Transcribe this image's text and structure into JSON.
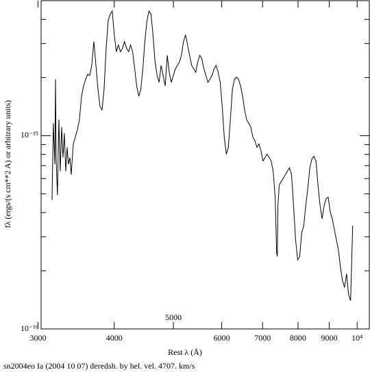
{
  "chart_data": {
    "type": "line",
    "title": "sn2004eo Ia (2004 10 07) deredsh. by hel. vel.  4707. km/s",
    "x_label": "Rest λ (Å)",
    "y_label": "fλ (ergs/(s cm**2 A) or arbitrary units)",
    "xscale": "log",
    "yscale": "log",
    "color": "#000000",
    "xlim": [
      3035,
      10470
    ],
    "ylim": [
      1e-16,
      5e-15
    ],
    "xticks": [
      3000,
      4000,
      5000,
      6000,
      7000,
      8000,
      9000,
      {
        "value": 10000,
        "label": "10⁴"
      }
    ],
    "yticks": [
      {
        "value": 1e-16,
        "label": "10⁻¹⁶"
      },
      {
        "value": 1e-15,
        "label": "10⁻¹⁵"
      }
    ],
    "yminorticks": [
      2e-16,
      3e-16,
      4e-16,
      5e-16,
      6e-16,
      7e-16,
      8e-16,
      9e-16,
      2e-15,
      3e-15,
      4e-15,
      5e-15
    ],
    "x": [
      3162,
      3179,
      3196,
      3204,
      3212,
      3228,
      3245,
      3262,
      3279,
      3296,
      3313,
      3331,
      3348,
      3365,
      3383,
      3400,
      3427,
      3453,
      3480,
      3507,
      3535,
      3562,
      3590,
      3617,
      3646,
      3674,
      3703,
      3732,
      3761,
      3790,
      3819,
      3849,
      3879,
      3908,
      3939,
      3969,
      4000,
      4031,
      4062,
      4094,
      4125,
      4157,
      4189,
      4222,
      4254,
      4287,
      4320,
      4353,
      4387,
      4421,
      4455,
      4489,
      4524,
      4559,
      4594,
      4629,
      4665,
      4701,
      4737,
      4773,
      4810,
      4847,
      4885,
      4922,
      4960,
      4998,
      5037,
      5076,
      5115,
      5154,
      5194,
      5234,
      5274,
      5315,
      5356,
      5397,
      5439,
      5481,
      5523,
      5565,
      5608,
      5652,
      5695,
      5739,
      5784,
      5829,
      5874,
      5919,
      5965,
      6011,
      6057,
      6104,
      6151,
      6198,
      6246,
      6295,
      6343,
      6392,
      6441,
      6491,
      6541,
      6592,
      6643,
      6694,
      6746,
      6798,
      6850,
      6903,
      6957,
      7010,
      7064,
      7119,
      7174,
      7229,
      7285,
      7341,
      7379,
      7398,
      7417,
      7455,
      7512,
      7571,
      7629,
      7688,
      7747,
      7807,
      7867,
      7928,
      7989,
      8051,
      8113,
      8176,
      8239,
      8302,
      8366,
      8431,
      8496,
      8562,
      8628,
      8694,
      8761,
      8829,
      8897,
      8966,
      9035,
      9105,
      9175,
      9246,
      9317,
      9389,
      9461,
      9535,
      9608,
      9682,
      9757,
      9832
    ],
    "values": [
      4.66e-16,
      1.16e-15,
      7.11e-16,
      1.96e-15,
      7.71e-16,
      4.93e-16,
      1.21e-15,
      6.55e-16,
      1.11e-15,
      7.71e-16,
      1.03e-15,
      6.55e-16,
      8.71e-16,
      7.11e-16,
      7.71e-16,
      6.29e-16,
      9.07e-16,
      9.84e-16,
      1.07e-15,
      1.21e-15,
      1.6e-15,
      1.81e-15,
      1.96e-15,
      2.08e-15,
      2.05e-15,
      2.31e-15,
      3.07e-15,
      2.31e-15,
      1.74e-15,
      1.42e-15,
      1.36e-15,
      1.74e-15,
      2.83e-15,
      3.92e-15,
      4.26e-15,
      4.43e-15,
      3.33e-15,
      2.72e-15,
      2.95e-15,
      2.72e-15,
      2.83e-15,
      3.07e-15,
      2.83e-15,
      2.72e-15,
      2.95e-15,
      2.72e-15,
      2.22e-15,
      1.81e-15,
      1.6e-15,
      1.74e-15,
      2.22e-15,
      3.07e-15,
      3.92e-15,
      4.43e-15,
      4.26e-15,
      3.33e-15,
      2.41e-15,
      2.05e-15,
      1.89e-15,
      2.31e-15,
      2.05e-15,
      1.81e-15,
      2.61e-15,
      2.13e-15,
      1.89e-15,
      2.05e-15,
      2.22e-15,
      2.31e-15,
      2.41e-15,
      2.61e-15,
      3.07e-15,
      3.33e-15,
      2.95e-15,
      2.61e-15,
      2.31e-15,
      2.22e-15,
      2.13e-15,
      2.41e-15,
      2.61e-15,
      2.51e-15,
      2.22e-15,
      2.05e-15,
      1.89e-15,
      1.96e-15,
      2.05e-15,
      2.22e-15,
      2.31e-15,
      2.13e-15,
      1.89e-15,
      1.42e-15,
      9.84e-16,
      8.03e-16,
      8.71e-16,
      1.21e-15,
      1.74e-15,
      1.96e-15,
      2.01e-15,
      1.96e-15,
      1.81e-15,
      1.6e-15,
      1.36e-15,
      1.21e-15,
      1.16e-15,
      1.11e-15,
      9.84e-16,
      9.44e-16,
      8.71e-16,
      9.07e-16,
      8.36e-16,
      7.4e-16,
      7.71e-16,
      8.03e-16,
      7.71e-16,
      7.4e-16,
      6.55e-16,
      4.73e-16,
      2.47e-16,
      2.37e-16,
      4.36e-16,
      5.57e-16,
      5.8e-16,
      6.04e-16,
      6.29e-16,
      6.55e-16,
      6.82e-16,
      6.29e-16,
      4.36e-16,
      2.9e-16,
      2.28e-16,
      2.37e-16,
      3.15e-16,
      3.42e-16,
      4.36e-16,
      5.35e-16,
      6.82e-16,
      7.59e-16,
      7.83e-16,
      7.4e-16,
      5.57e-16,
      4.36e-16,
      3.71e-16,
      4.36e-16,
      4.73e-16,
      4.81e-16,
      4.02e-16,
      3.71e-16,
      3.28e-16,
      2.9e-16,
      2.57e-16,
      2.1e-16,
      1.78e-16,
      1.64e-16,
      1.93e-16,
      1.51e-16,
      1.4e-16,
      3.42e-16
    ]
  }
}
